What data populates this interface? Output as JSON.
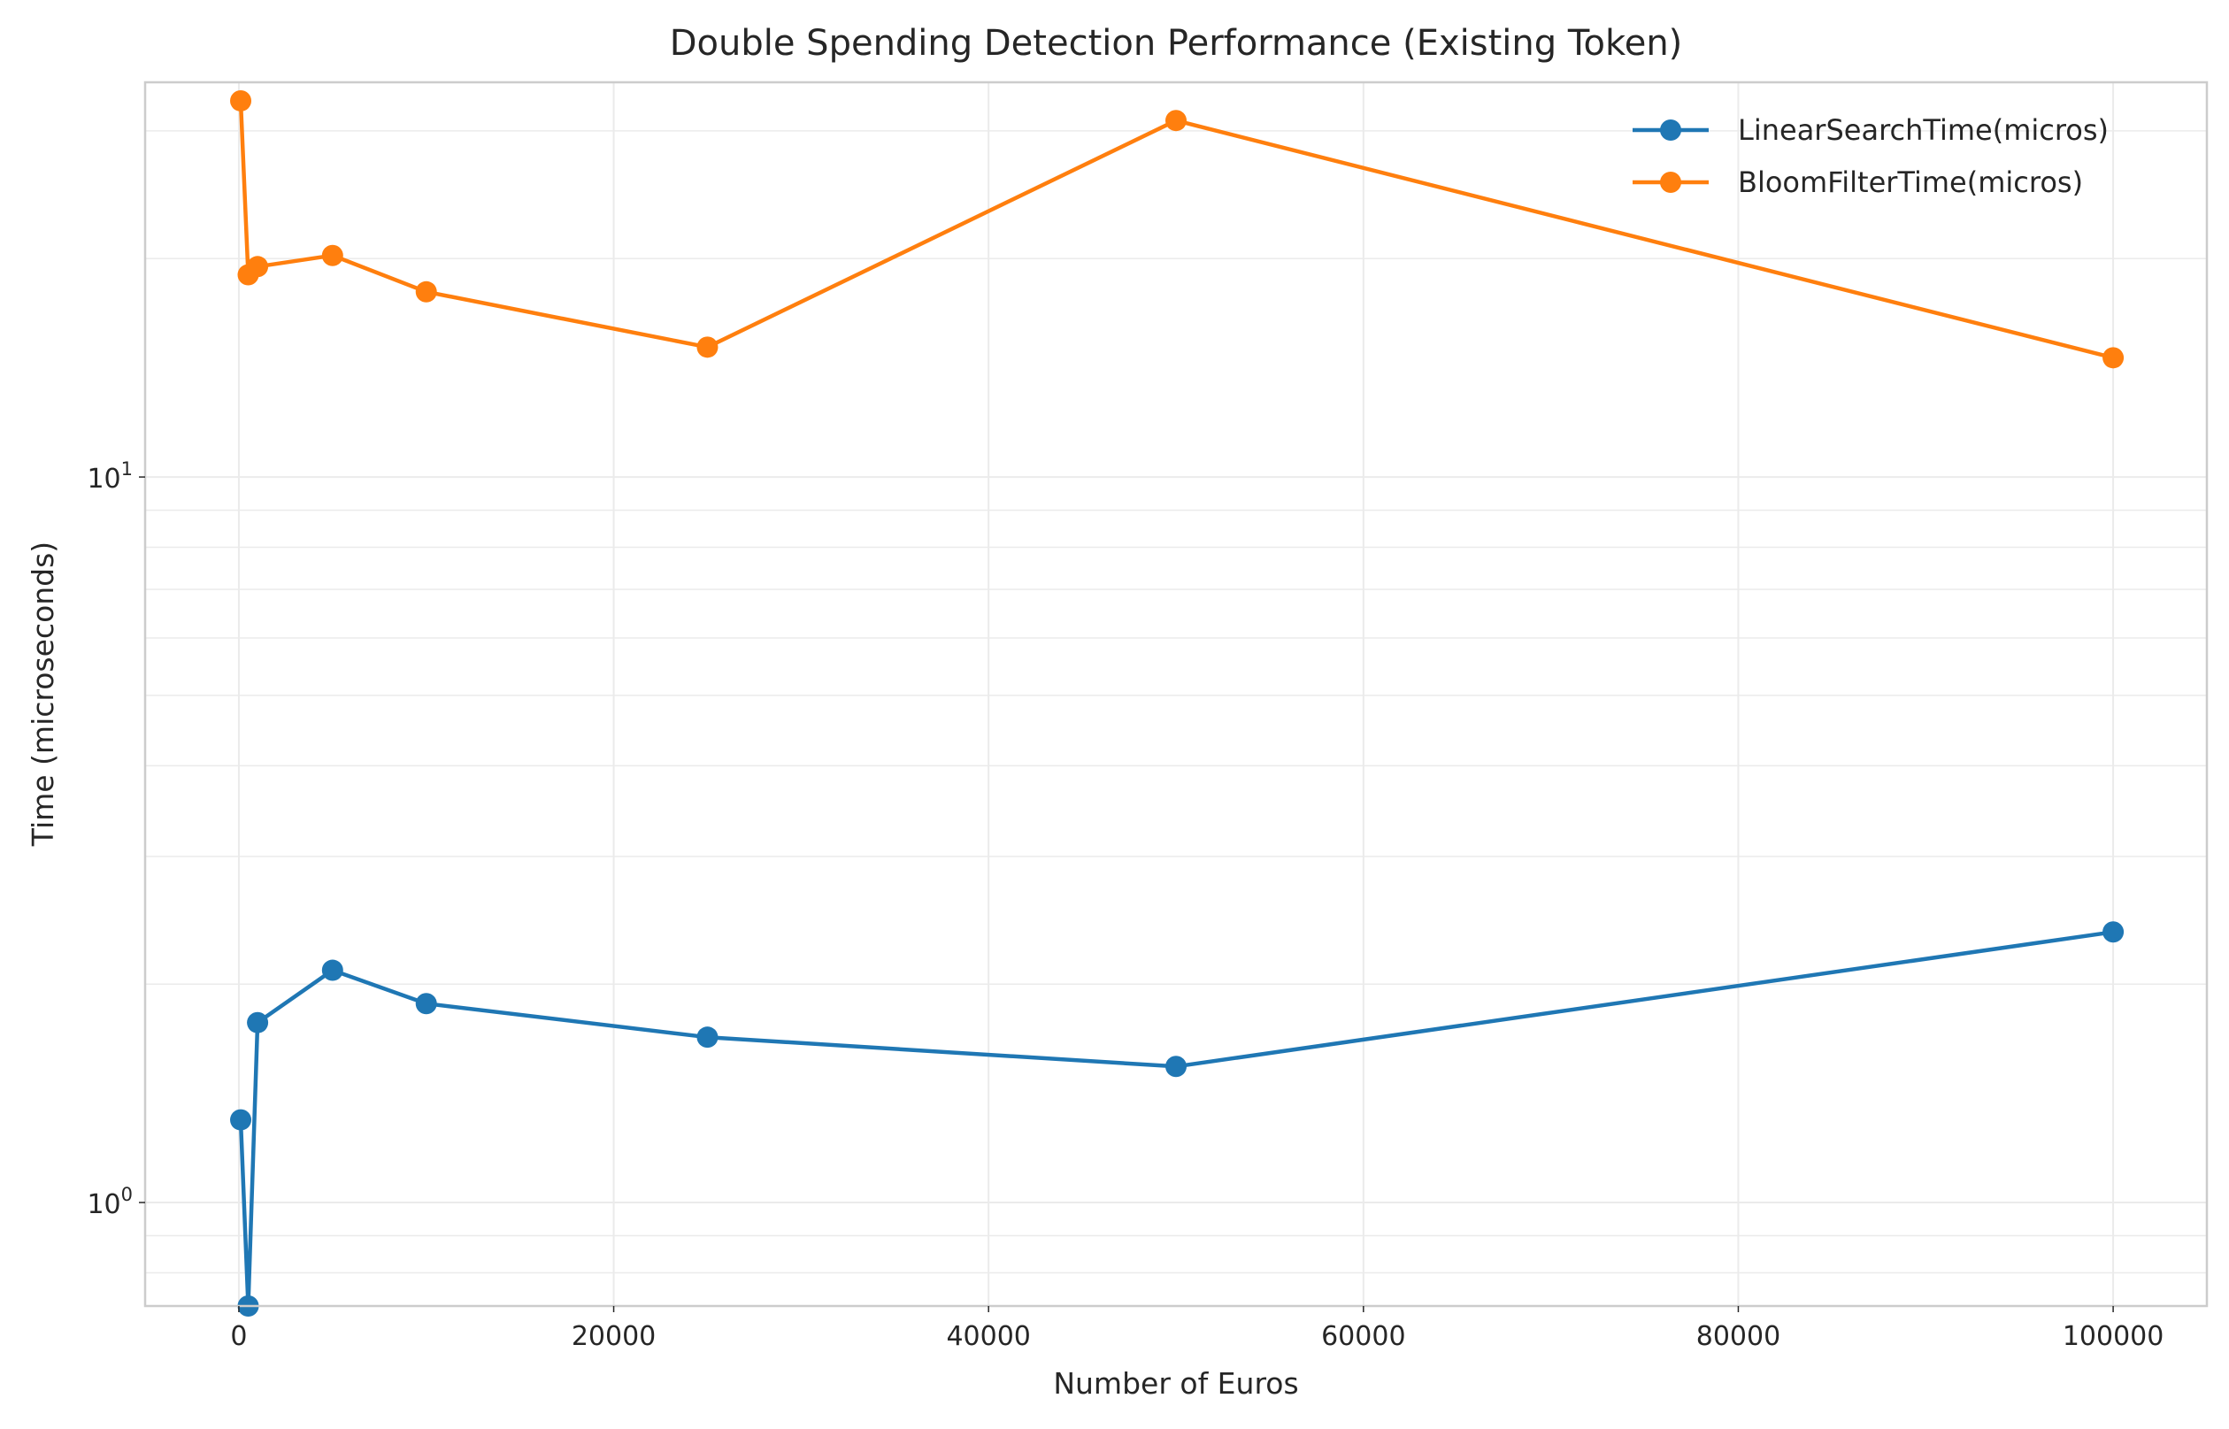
{
  "chart_data": {
    "type": "line",
    "title": "Double Spending Detection Performance (Existing Token)",
    "xlabel": "Number of Euros",
    "ylabel": "Time (microseconds)",
    "x": [
      100,
      500,
      1000,
      5000,
      10000,
      25000,
      50000,
      100000
    ],
    "series": [
      {
        "name": "LinearSearchTime(micros)",
        "color": "#1f77b4",
        "values": [
          1.3,
          0.72,
          1.77,
          2.09,
          1.88,
          1.69,
          1.54,
          2.36
        ]
      },
      {
        "name": "BloomFilterTime(micros)",
        "color": "#ff7f0e",
        "values": [
          33.0,
          19.0,
          19.5,
          20.2,
          18.0,
          15.1,
          31.0,
          14.6
        ]
      }
    ],
    "xlim": [
      -5000,
      105000
    ],
    "ylim": [
      0.72,
      35
    ],
    "yscale": "log",
    "x_ticks": [
      0,
      20000,
      40000,
      60000,
      80000,
      100000
    ],
    "x_tick_labels": [
      "0",
      "20000",
      "40000",
      "60000",
      "80000",
      "100000"
    ],
    "y_ticks": [
      {
        "value": 1,
        "base": "10",
        "exp": "0"
      },
      {
        "value": 10,
        "base": "10",
        "exp": "1"
      }
    ],
    "grid": true,
    "legend": "top-right"
  }
}
